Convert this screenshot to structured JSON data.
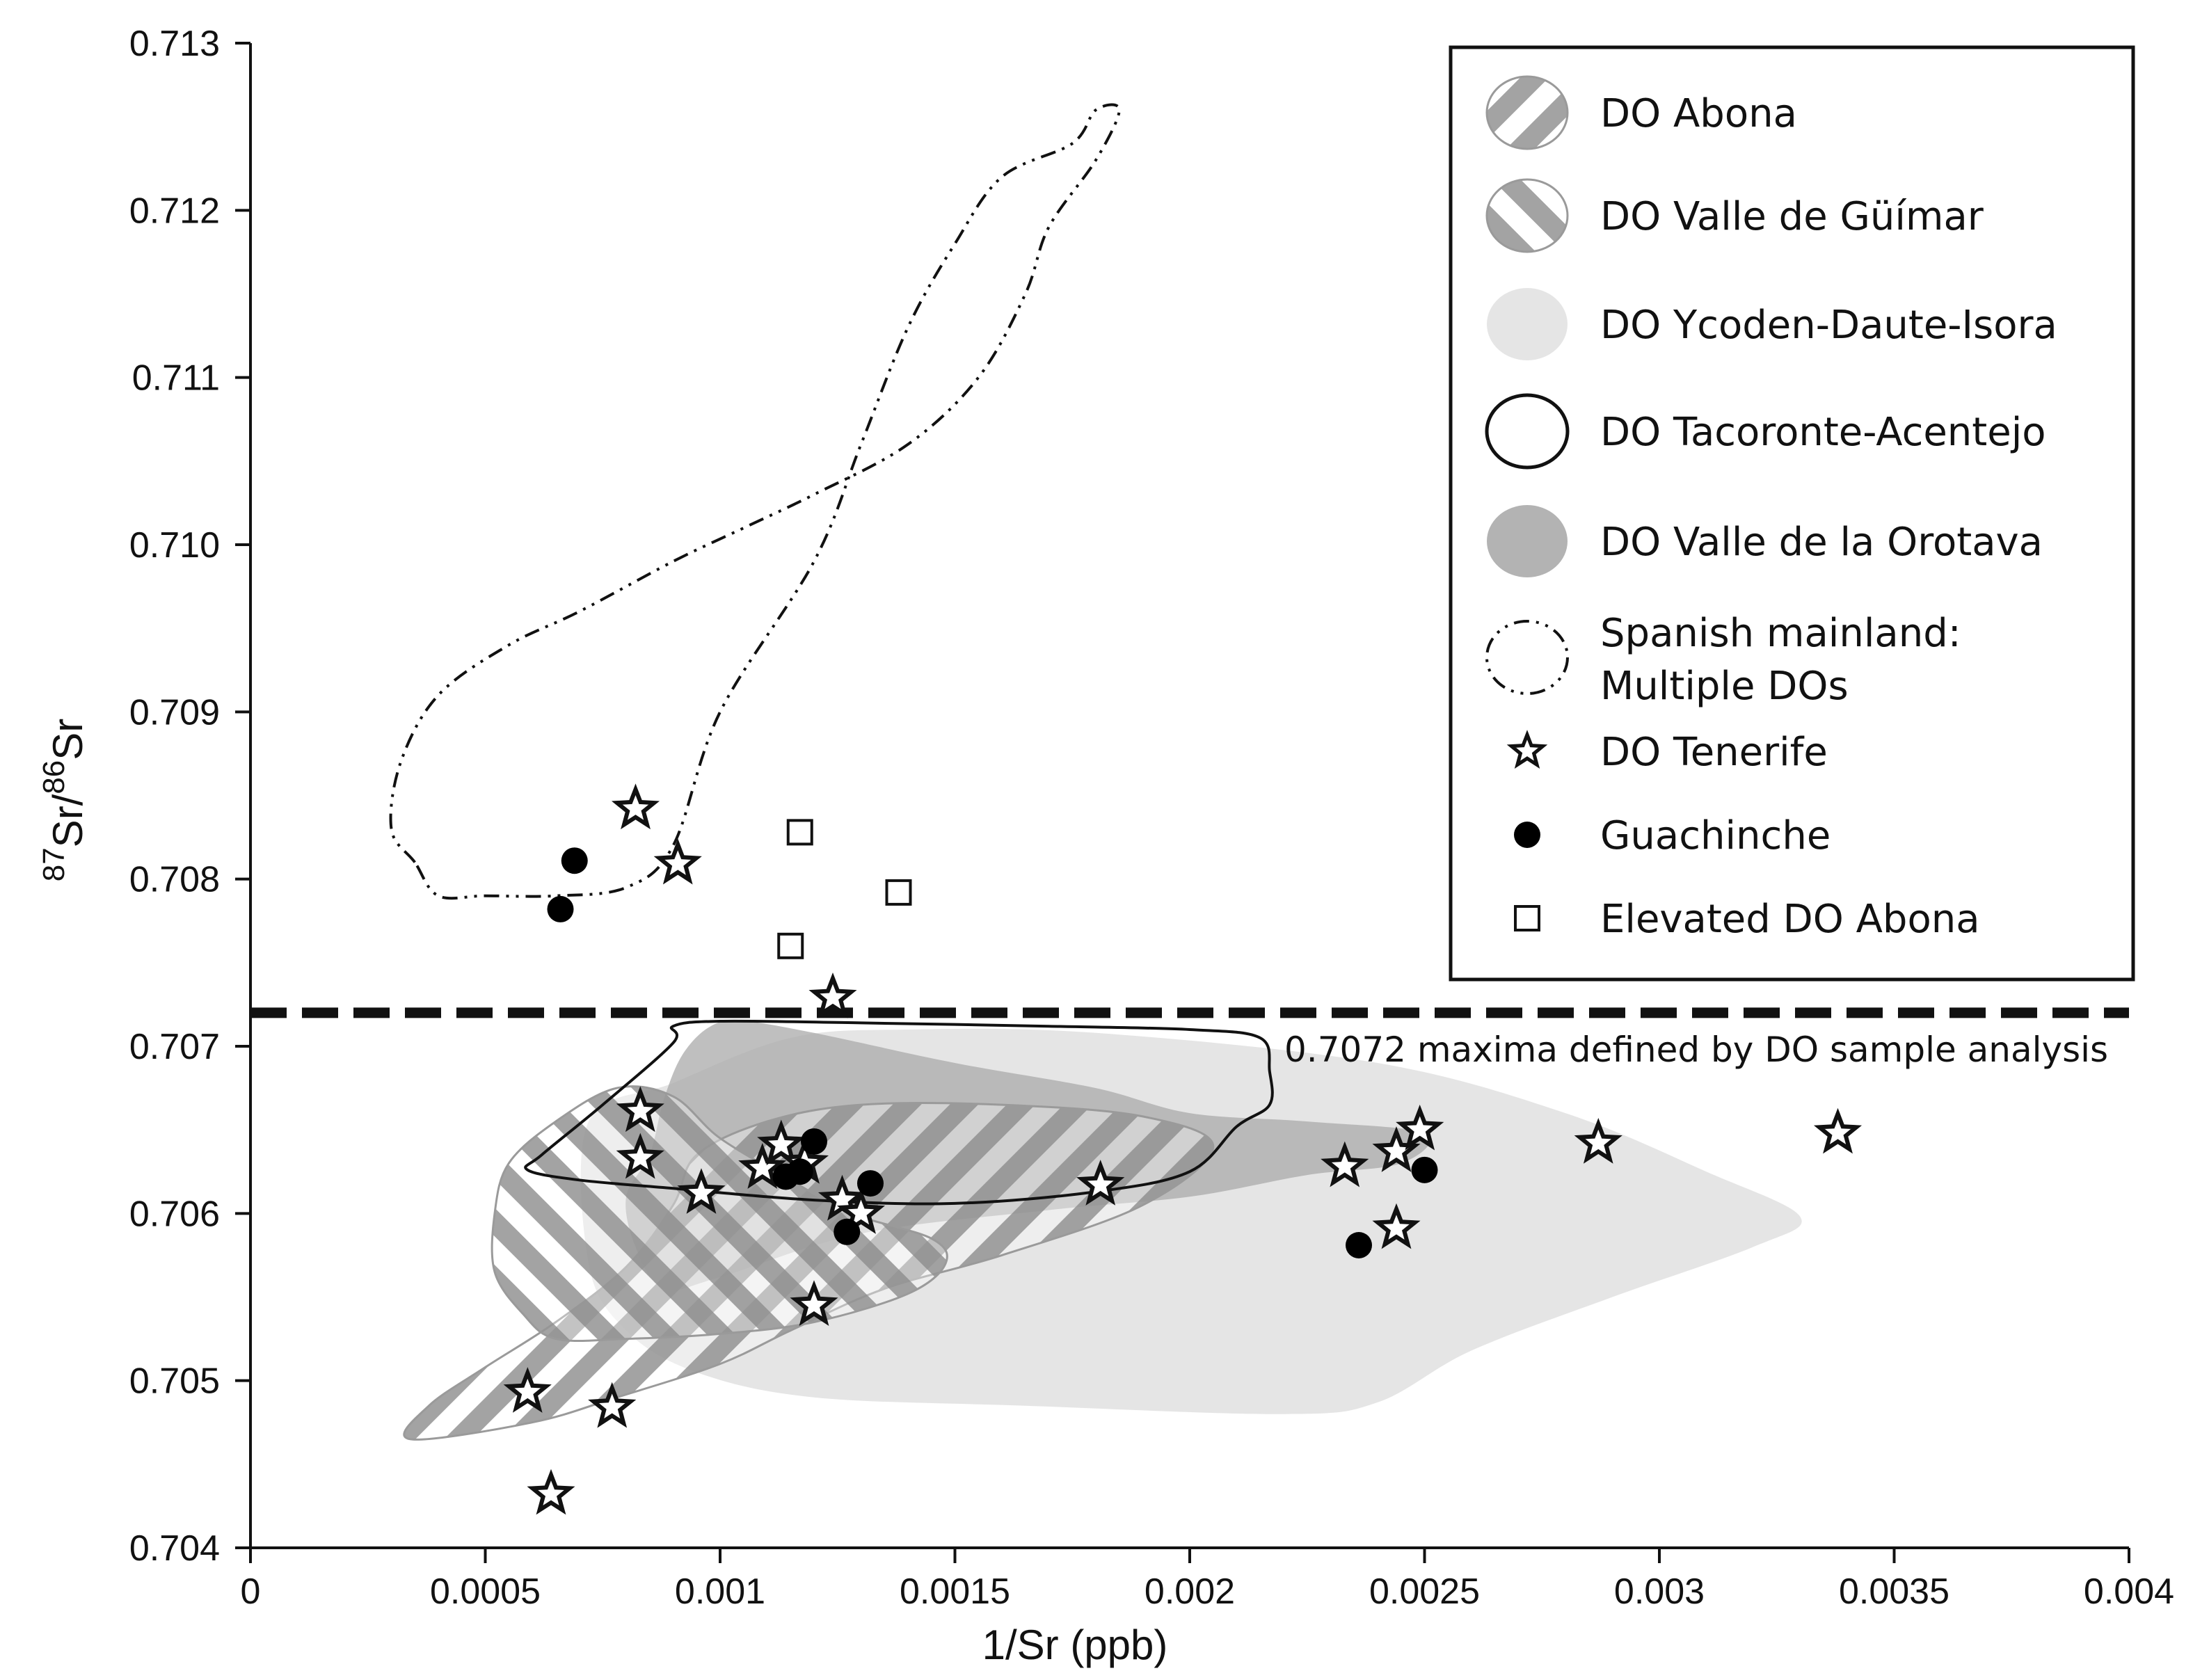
{
  "chart_data": {
    "type": "scatter",
    "title": "",
    "xlabel": "1/Sr (ppb)",
    "ylabel": {
      "sup1": "87",
      "base1": "Sr/",
      "sup2": "86",
      "base2": "Sr"
    },
    "xlim": [
      0,
      0.004
    ],
    "ylim": [
      0.704,
      0.713
    ],
    "x_ticks": [
      "0",
      "0.0005",
      "0.001",
      "0.0015",
      "0.002",
      "0.0025",
      "0.003",
      "0.0035",
      "0.004"
    ],
    "y_ticks": [
      "0.704",
      "0.705",
      "0.706",
      "0.707",
      "0.708",
      "0.709",
      "0.710",
      "0.711",
      "0.712",
      "0.713"
    ],
    "grid": false,
    "legend_position": "top-right",
    "threshold": {
      "y": 0.7072,
      "label": "0.7072 maxima defined by DO sample analysis"
    },
    "legend": [
      {
        "label": "DO Abona",
        "symbol": "hatch-ccw"
      },
      {
        "label": "DO Valle de Güímar",
        "symbol": "hatch-cw"
      },
      {
        "label": "DO Ycoden-Daute-Isora",
        "symbol": "fill-light"
      },
      {
        "label": "DO Tacoronte-Acentejo",
        "symbol": "outline"
      },
      {
        "label": "DO Valle de la Orotava",
        "symbol": "fill-dark"
      },
      {
        "label": "Spanish mainland:",
        "label2": "Multiple DOs",
        "symbol": "dashdot"
      },
      {
        "label": "DO Tenerife",
        "symbol": "star"
      },
      {
        "label": "Guachinche",
        "symbol": "circle"
      },
      {
        "label": "Elevated DO Abona",
        "symbol": "square"
      }
    ],
    "regions": [
      {
        "name": "DO Ycoden-Daute-Isora",
        "style": "fill-light",
        "points": [
          [
            0.00072,
            0.70655
          ],
          [
            0.0009,
            0.70678
          ],
          [
            0.00115,
            0.70705
          ],
          [
            0.0014,
            0.7071
          ],
          [
            0.0018,
            0.70708
          ],
          [
            0.0024,
            0.7069
          ],
          [
            0.0028,
            0.7066
          ],
          [
            0.0031,
            0.70625
          ],
          [
            0.0033,
            0.70598
          ],
          [
            0.0032,
            0.7058
          ],
          [
            0.0029,
            0.7055
          ],
          [
            0.0026,
            0.70518
          ],
          [
            0.0024,
            0.70487
          ],
          [
            0.0022,
            0.7048
          ],
          [
            0.00165,
            0.70485
          ],
          [
            0.0012,
            0.7049
          ],
          [
            0.00095,
            0.70505
          ],
          [
            0.0008,
            0.7053
          ],
          [
            0.00072,
            0.7057
          ]
        ]
      },
      {
        "name": "DO Valle de la Orotava",
        "style": "fill-dark",
        "points": [
          [
            0.00085,
            0.70635
          ],
          [
            0.00088,
            0.70668
          ],
          [
            0.00092,
            0.70695
          ],
          [
            0.00098,
            0.70712
          ],
          [
            0.00105,
            0.70715
          ],
          [
            0.0012,
            0.70708
          ],
          [
            0.0015,
            0.7069
          ],
          [
            0.0018,
            0.70675
          ],
          [
            0.002,
            0.7066
          ],
          [
            0.00225,
            0.70655
          ],
          [
            0.0025,
            0.70648
          ],
          [
            0.00245,
            0.7063
          ],
          [
            0.00225,
            0.70623
          ],
          [
            0.002,
            0.7061
          ],
          [
            0.0017,
            0.70602
          ],
          [
            0.0013,
            0.70588
          ],
          [
            0.001,
            0.70562
          ],
          [
            0.00088,
            0.70555
          ],
          [
            0.00082,
            0.7058
          ],
          [
            0.0008,
            0.7061
          ]
        ]
      },
      {
        "name": "DO Abona",
        "style": "hatch-ccw",
        "points": [
          [
            0.00095,
            0.70635
          ],
          [
            0.0011,
            0.70655
          ],
          [
            0.0013,
            0.70665
          ],
          [
            0.0016,
            0.70665
          ],
          [
            0.0019,
            0.70658
          ],
          [
            0.00205,
            0.7064
          ],
          [
            0.0019,
            0.70605
          ],
          [
            0.0016,
            0.70575
          ],
          [
            0.00135,
            0.70555
          ],
          [
            0.00115,
            0.7053
          ],
          [
            0.001,
            0.7051
          ],
          [
            0.00078,
            0.7049
          ],
          [
            0.0006,
            0.70475
          ],
          [
            0.00034,
            0.70465
          ],
          [
            0.00038,
            0.70485
          ],
          [
            0.0005,
            0.70508
          ],
          [
            0.00065,
            0.70535
          ],
          [
            0.0008,
            0.70568
          ],
          [
            0.0009,
            0.70605
          ]
        ]
      },
      {
        "name": "DO Valle de Güímar",
        "style": "hatch-cw",
        "points": [
          [
            0.00055,
            0.7063
          ],
          [
            0.00065,
            0.70655
          ],
          [
            0.00078,
            0.70675
          ],
          [
            0.0009,
            0.7067
          ],
          [
            0.001,
            0.70645
          ],
          [
            0.00115,
            0.7062
          ],
          [
            0.00128,
            0.706
          ],
          [
            0.00145,
            0.70585
          ],
          [
            0.00148,
            0.7057
          ],
          [
            0.0014,
            0.70552
          ],
          [
            0.0012,
            0.70535
          ],
          [
            0.001,
            0.70528
          ],
          [
            0.0008,
            0.70525
          ],
          [
            0.00065,
            0.70525
          ],
          [
            0.00058,
            0.7054
          ],
          [
            0.00052,
            0.70565
          ],
          [
            0.00052,
            0.706
          ]
        ]
      },
      {
        "name": "DO Tacoronte-Acentejo",
        "style": "outline",
        "points": [
          [
            0.00059,
            0.70626
          ],
          [
            0.00062,
            0.70635
          ],
          [
            0.00075,
            0.70665
          ],
          [
            0.0009,
            0.70702
          ],
          [
            0.0009,
            0.70712
          ],
          [
            0.001,
            0.70715
          ],
          [
            0.0013,
            0.70714
          ],
          [
            0.0017,
            0.70712
          ],
          [
            0.002,
            0.7071
          ],
          [
            0.00215,
            0.70705
          ],
          [
            0.00217,
            0.70685
          ],
          [
            0.00217,
            0.70665
          ],
          [
            0.0021,
            0.70652
          ],
          [
            0.002,
            0.70625
          ],
          [
            0.0018,
            0.70613
          ],
          [
            0.0015,
            0.70606
          ],
          [
            0.0012,
            0.70608
          ],
          [
            0.0009,
            0.70615
          ],
          [
            0.0007,
            0.7062
          ]
        ]
      },
      {
        "name": "Spanish mainland",
        "style": "dashdot",
        "points": [
          [
            0.00035,
            0.7081
          ],
          [
            0.0003,
            0.7083
          ],
          [
            0.00032,
            0.7087
          ],
          [
            0.0004,
            0.7091
          ],
          [
            0.00055,
            0.7094
          ],
          [
            0.0007,
            0.7096
          ],
          [
            0.0009,
            0.7099
          ],
          [
            0.00105,
            0.7101
          ],
          [
            0.0012,
            0.7103
          ],
          [
            0.0014,
            0.7106
          ],
          [
            0.00155,
            0.711
          ],
          [
            0.00165,
            0.7115
          ],
          [
            0.0017,
            0.7119
          ],
          [
            0.0018,
            0.7123
          ],
          [
            0.00185,
            0.7126
          ],
          [
            0.0018,
            0.7126
          ],
          [
            0.00175,
            0.7124
          ],
          [
            0.0016,
            0.7122
          ],
          [
            0.0015,
            0.7118
          ],
          [
            0.0014,
            0.7113
          ],
          [
            0.0013,
            0.7106
          ],
          [
            0.0012,
            0.7099
          ],
          [
            0.001,
            0.709
          ],
          [
            0.0009,
            0.7082
          ],
          [
            0.0008,
            0.70795
          ],
          [
            0.00065,
            0.7079
          ],
          [
            0.0005,
            0.7079
          ],
          [
            0.0004,
            0.7079
          ]
        ]
      }
    ],
    "series": [
      {
        "name": "DO Tenerife",
        "marker": "star",
        "x": [
          0.00082,
          0.00091,
          0.00124,
          0.00083,
          0.00083,
          0.00096,
          0.00109,
          0.00113,
          0.00118,
          0.00126,
          0.0013,
          0.0012,
          0.00181,
          0.00059,
          0.00077,
          0.00064,
          0.00233,
          0.00244,
          0.00249,
          0.00244,
          0.00287,
          0.00338
        ],
        "y": [
          0.70842,
          0.70809,
          0.70729,
          0.70661,
          0.70633,
          0.70612,
          0.70627,
          0.70641,
          0.7063,
          0.70608,
          0.706,
          0.70545,
          0.70617,
          0.70493,
          0.70484,
          0.70432,
          0.70628,
          0.70637,
          0.7065,
          0.70591,
          0.70642,
          0.70648
        ]
      },
      {
        "name": "Guachinche",
        "marker": "circle",
        "x": [
          0.00069,
          0.00066,
          0.00114,
          0.00117,
          0.0012,
          0.00132,
          0.00127,
          0.00236,
          0.0025
        ],
        "y": [
          0.70811,
          0.70782,
          0.70622,
          0.70625,
          0.70643,
          0.70618,
          0.70589,
          0.70581,
          0.70626
        ]
      },
      {
        "name": "Elevated DO Abona",
        "marker": "square",
        "x": [
          0.00117,
          0.00138,
          0.00115
        ],
        "y": [
          0.70828,
          0.70792,
          0.7076
        ]
      }
    ]
  }
}
